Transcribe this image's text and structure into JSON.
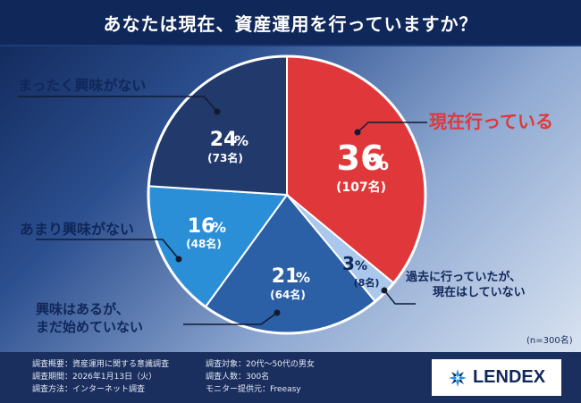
{
  "title": "あなたは現在、資産運用を行っていますか？",
  "chart_data": {
    "type": "pie",
    "title": "あなたは現在、資産運用を行っていますか？",
    "slices": [
      {
        "label": "現在行っている",
        "percent": 36,
        "count": "(107名)",
        "color": "#e0383a"
      },
      {
        "label": "過去に行っていたが、現在はしていない",
        "percent": 3,
        "count": "(8名)",
        "color": "#a9c8ec"
      },
      {
        "label": "興味はあるが、まだ始めていない",
        "percent": 21,
        "count": "(64名)",
        "color": "#2b5fa6"
      },
      {
        "label": "あまり興味がない",
        "percent": 16,
        "count": "(48名)",
        "color": "#2b8fd8"
      },
      {
        "label": "まったく興味がない",
        "percent": 24,
        "count": "(73名)",
        "color": "#22396b"
      }
    ],
    "start_angle_deg": 0,
    "direction": "clockwise",
    "sample_note": "(n=300名)"
  },
  "callouts": {
    "current": "現在行っている",
    "past_line1": "過去に行っていたが、",
    "past_line2": "現在はしていない",
    "interested_line1": "興味はあるが、",
    "interested_line2": "まだ始めていない",
    "not_very": "あまり興味がない",
    "not_at_all": "まったく興味がない"
  },
  "footer": {
    "left": [
      "調査概要：資産運用に関する意識調査",
      "調査期間：2026年1月13日（火）",
      "調査方法：インターネット調査"
    ],
    "right": [
      "調査対象：20代～50代の男女",
      "調査人数：300名",
      "モニター提供元：Freeasy"
    ],
    "logo_text": "LENDEX"
  }
}
